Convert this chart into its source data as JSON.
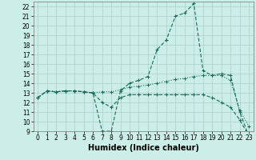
{
  "title": "",
  "xlabel": "Humidex (Indice chaleur)",
  "bg_color": "#cceee8",
  "grid_color": "#aacccc",
  "line_color": "#1a6b5a",
  "x_values": [
    0,
    1,
    2,
    3,
    4,
    5,
    6,
    7,
    8,
    9,
    10,
    11,
    12,
    13,
    14,
    15,
    16,
    17,
    18,
    19,
    20,
    21,
    22,
    23
  ],
  "y_max": [
    12.5,
    13.2,
    13.1,
    13.2,
    13.2,
    13.1,
    13.0,
    9.0,
    9.0,
    13.2,
    14.0,
    14.3,
    14.7,
    17.5,
    18.5,
    21.0,
    21.3,
    22.3,
    15.3,
    14.8,
    15.0,
    14.8,
    11.0,
    8.5
  ],
  "y_avg": [
    12.5,
    13.2,
    13.1,
    13.2,
    13.2,
    13.1,
    13.0,
    13.1,
    13.1,
    13.3,
    13.6,
    13.7,
    13.8,
    14.0,
    14.2,
    14.4,
    14.5,
    14.7,
    14.8,
    14.8,
    14.8,
    14.3,
    11.2,
    9.5
  ],
  "y_min": [
    12.5,
    13.2,
    13.1,
    13.2,
    13.2,
    13.1,
    13.0,
    12.0,
    11.5,
    12.5,
    12.8,
    12.8,
    12.8,
    12.8,
    12.8,
    12.8,
    12.8,
    12.8,
    12.8,
    12.5,
    12.0,
    11.5,
    10.2,
    8.5
  ],
  "ylim": [
    9,
    22.5
  ],
  "xlim": [
    -0.5,
    23.5
  ],
  "yticks": [
    9,
    10,
    11,
    12,
    13,
    14,
    15,
    16,
    17,
    18,
    19,
    20,
    21,
    22
  ],
  "xticks": [
    0,
    1,
    2,
    3,
    4,
    5,
    6,
    7,
    8,
    9,
    10,
    11,
    12,
    13,
    14,
    15,
    16,
    17,
    18,
    19,
    20,
    21,
    22,
    23
  ],
  "tick_fontsize": 5.5,
  "label_fontsize": 7
}
